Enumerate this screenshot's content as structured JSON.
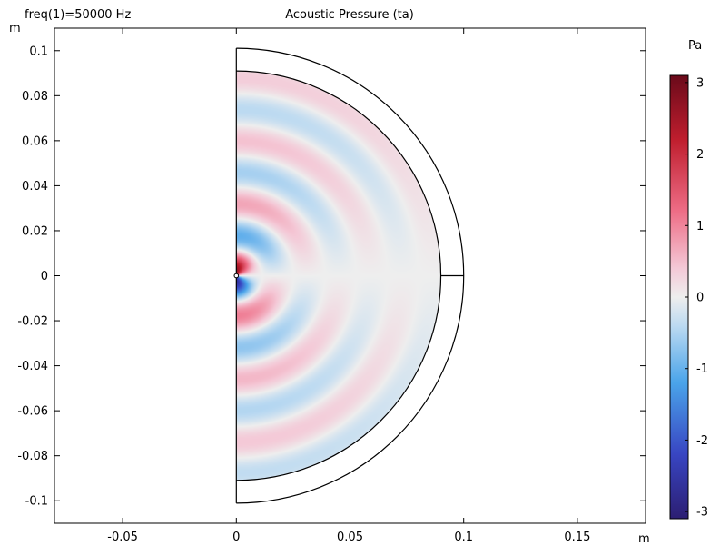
{
  "header": {
    "parameter_label": "freq(1)=50000 Hz",
    "title": "Acoustic Pressure (ta)"
  },
  "chart_data": {
    "type": "heatmap",
    "title": "Acoustic Pressure (ta)",
    "subtitle": "freq(1)=50000 Hz",
    "xlabel": "m",
    "ylabel": "m",
    "xlim": [
      -0.08,
      0.18
    ],
    "ylim": [
      -0.11,
      0.11
    ],
    "x_ticks": [
      -0.05,
      0,
      0.05,
      0.1,
      0.15
    ],
    "x_tick_labels": [
      "-0.05",
      "0",
      "0.05",
      "0.1",
      "0.15"
    ],
    "y_ticks": [
      0.1,
      0.08,
      0.06,
      0.04,
      0.02,
      0,
      -0.02,
      -0.04,
      -0.06,
      -0.08,
      -0.1
    ],
    "y_tick_labels": [
      "0.1",
      "0.08",
      "0.06",
      "0.04",
      "0.02",
      "0",
      "-0.02",
      "-0.04",
      "-0.06",
      "-0.08",
      "-0.1"
    ],
    "domain": {
      "shape": "half-disc",
      "inner_radius": 0.09,
      "outer_radius": 0.1,
      "center": [
        0,
        0
      ]
    },
    "field_model": {
      "wavelength": 0.0275,
      "peak_amplitude": 3.1
    },
    "colorbar": {
      "unit": "Pa",
      "range": [
        -3.1,
        3.1
      ],
      "ticks": [
        3,
        2,
        1,
        0,
        -1,
        -2,
        -3
      ],
      "tick_labels": [
        "3",
        "2",
        "1",
        "0",
        "-1",
        "-2",
        "-3"
      ],
      "colormap": "RdBu_r (wave)",
      "stops": [
        {
          "v": -3.1,
          "c": "#2c1e72"
        },
        {
          "v": -2.2,
          "c": "#3845c2"
        },
        {
          "v": -1.2,
          "c": "#4aa4ea"
        },
        {
          "v": -0.4,
          "c": "#bcdaf1"
        },
        {
          "v": 0.0,
          "c": "#eeeeee"
        },
        {
          "v": 0.4,
          "c": "#f4c9d7"
        },
        {
          "v": 1.2,
          "c": "#ee6d86"
        },
        {
          "v": 2.2,
          "c": "#bf1e2e"
        },
        {
          "v": 3.1,
          "c": "#6a0a1a"
        }
      ]
    }
  }
}
